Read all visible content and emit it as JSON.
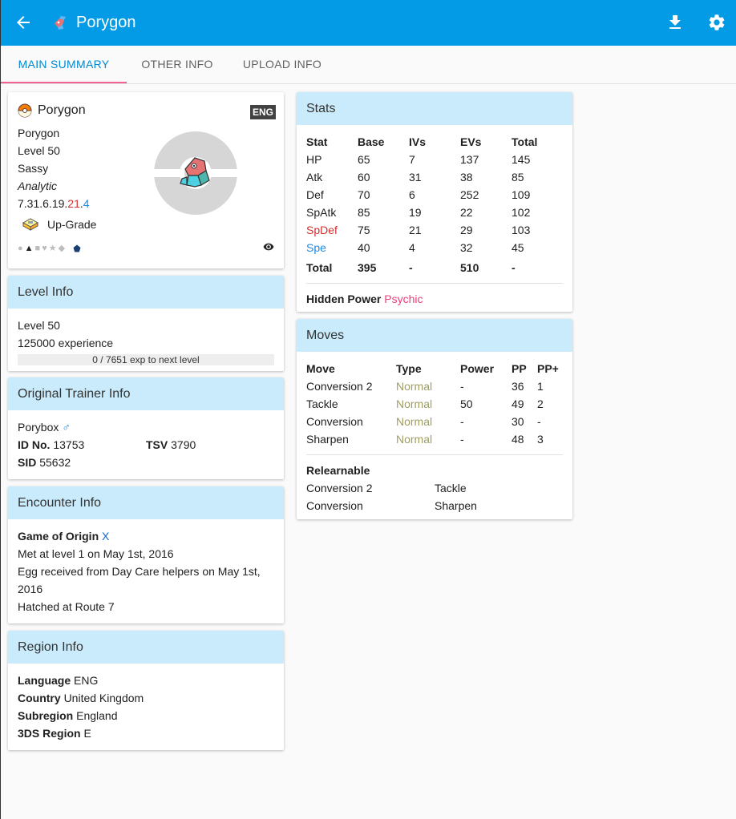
{
  "appbar": {
    "title": "Porygon",
    "back_icon": "arrow-left-icon",
    "pokemon_icon": "porygon-icon",
    "download_icon": "download-icon",
    "settings_icon": "gear-icon"
  },
  "tabs": [
    {
      "label": "MAIN SUMMARY"
    },
    {
      "label": "OTHER INFO"
    },
    {
      "label": "UPLOAD INFO"
    }
  ],
  "summary": {
    "nickname": "Porygon",
    "language_badge": "ENG",
    "species": "Porygon",
    "level": "Level 50",
    "nature": "Sassy",
    "ability": "Analytic",
    "ivs_prefix": "7.31.6.19.",
    "ivs_red": "21",
    "ivs_dot": ".",
    "ivs_blue": "4",
    "held_item": "Up-Grade",
    "marks": "●▲■♥★◆"
  },
  "level_info": {
    "header": "Level Info",
    "level": "Level 50",
    "experience": "125000 experience",
    "progress_text": "0 / 7651 exp to next level",
    "progress": 0
  },
  "trainer": {
    "header": "Original Trainer Info",
    "name": "Porybox",
    "gender_symbol": "♂",
    "id_label": "ID No.",
    "id_value": "13753",
    "tsv_label": "TSV",
    "tsv_value": "3790",
    "sid_label": "SID",
    "sid_value": "55632"
  },
  "encounter": {
    "header": "Encounter Info",
    "origin_label": "Game of Origin",
    "origin_value": "X",
    "met": "Met at level 1 on May 1st, 2016",
    "egg_line1": "Egg received from Day Care helpers on May 1st,",
    "egg_line2": "2016",
    "hatched": "Hatched at Route 7"
  },
  "region": {
    "header": "Region Info",
    "language_label": "Language",
    "language_value": "ENG",
    "country_label": "Country",
    "country_value": "United Kingdom",
    "subregion_label": "Subregion",
    "subregion_value": "England",
    "region_label": "3DS Region",
    "region_value": "E"
  },
  "stats": {
    "header": "Stats",
    "columns": [
      "Stat",
      "Base",
      "IVs",
      "EVs",
      "Total"
    ],
    "rows": [
      {
        "stat": "HP",
        "base": "65",
        "ivs": "7",
        "evs": "137",
        "total": "145"
      },
      {
        "stat": "Atk",
        "base": "60",
        "ivs": "31",
        "evs": "38",
        "total": "85"
      },
      {
        "stat": "Def",
        "base": "70",
        "ivs": "6",
        "evs": "252",
        "total": "109"
      },
      {
        "stat": "SpAtk",
        "base": "85",
        "ivs": "19",
        "evs": "22",
        "total": "102"
      },
      {
        "stat": "SpDef",
        "base": "75",
        "ivs": "21",
        "evs": "29",
        "total": "103"
      },
      {
        "stat": "Spe",
        "base": "40",
        "ivs": "4",
        "evs": "32",
        "total": "45"
      }
    ],
    "totals": {
      "stat": "Total",
      "base": "395",
      "ivs": "-",
      "evs": "510",
      "total": "-"
    },
    "hidden_power_label": "Hidden Power",
    "hidden_power_type": "Psychic",
    "colors": {
      "lowered": "#d32f2f",
      "raised": "#1e88e5",
      "psychic": "#ec407a"
    }
  },
  "moves": {
    "header": "Moves",
    "columns": [
      "Move",
      "Type",
      "Power",
      "PP",
      "PP+"
    ],
    "rows": [
      {
        "move": "Conversion 2",
        "type": "Normal",
        "power": "-",
        "pp": "36",
        "ppup": "1"
      },
      {
        "move": "Tackle",
        "type": "Normal",
        "power": "50",
        "pp": "49",
        "ppup": "2"
      },
      {
        "move": "Conversion",
        "type": "Normal",
        "power": "-",
        "pp": "30",
        "ppup": "-"
      },
      {
        "move": "Sharpen",
        "type": "Normal",
        "power": "-",
        "pp": "48",
        "ppup": "3"
      }
    ],
    "relearnable_label": "Relearnable",
    "relearnable": [
      "Conversion 2",
      "Tackle",
      "Conversion",
      "Sharpen"
    ]
  },
  "colors": {
    "appbar": "#039be5",
    "card_header": "#c9ebfb",
    "tab_active": "#0288d1",
    "tab_indicator": "#f06292",
    "normal_type": "#9e9d64"
  }
}
